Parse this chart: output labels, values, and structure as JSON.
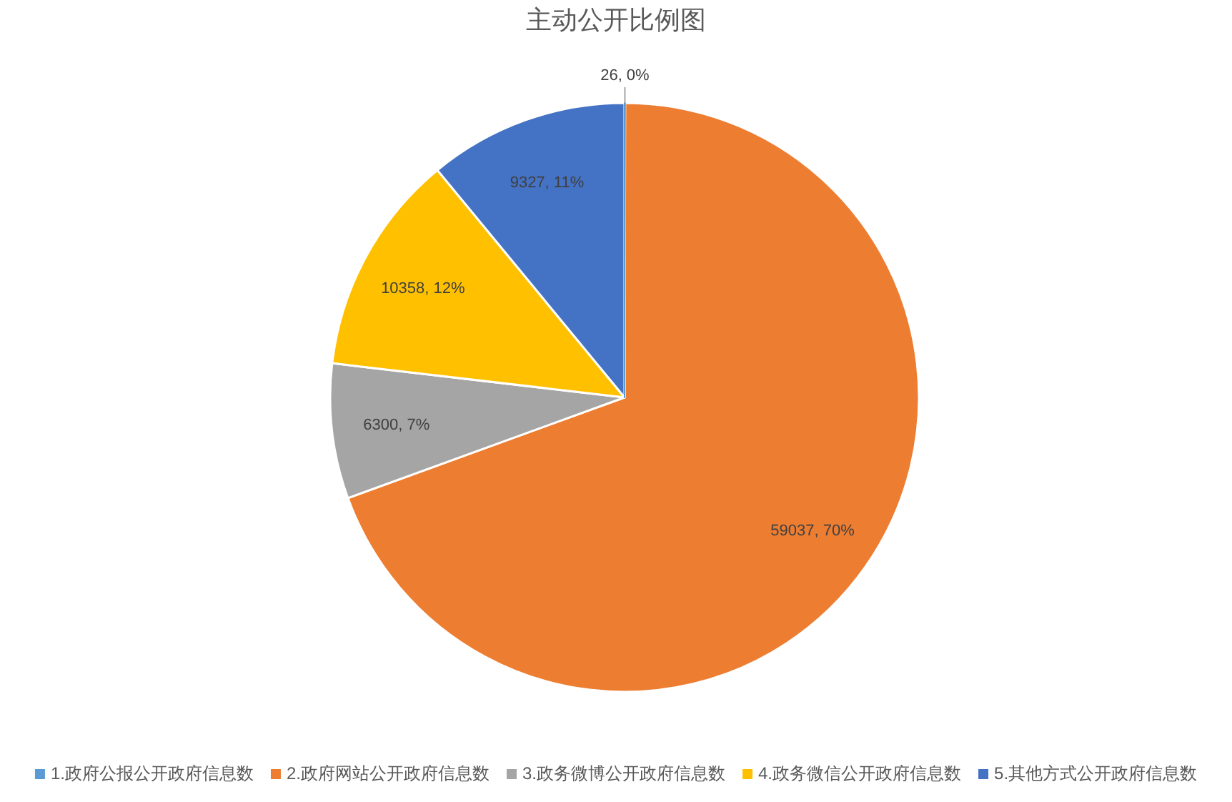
{
  "chart_data": {
    "type": "pie",
    "title": "主动公开比例图",
    "categories": [
      "1.政府公报公开政府信息数",
      "2.政府网站公开政府信息数",
      "3.政务微博公开政府信息数",
      "4.政务微信公开政府信息数",
      "5.其他方式公开政府信息数"
    ],
    "values": [
      26,
      59037,
      6300,
      10358,
      9327
    ],
    "colors": [
      "#5b9bd5",
      "#ed7d31",
      "#a5a5a5",
      "#ffc000",
      "#4472c4"
    ],
    "value_labels": [
      "26, 0%",
      "59037, 70%",
      "6300, 7%",
      "10358, 12%",
      "9327, 11%"
    ],
    "legend": "bottom"
  }
}
